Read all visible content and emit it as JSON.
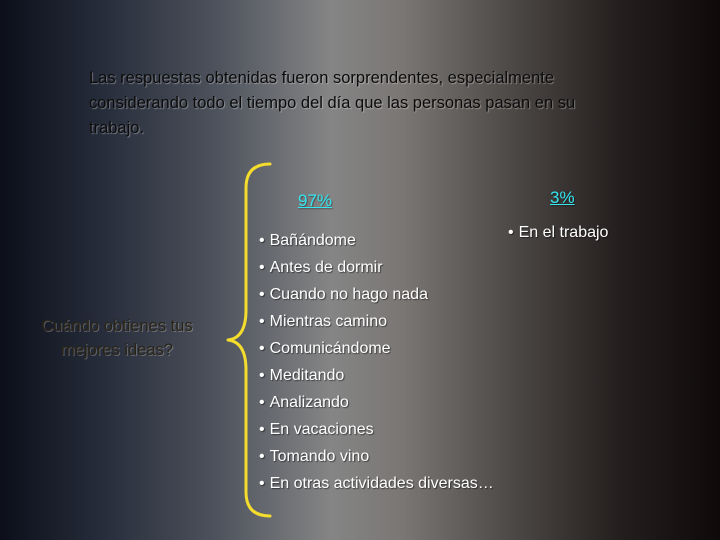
{
  "intro": {
    "text": "Las respuestas obtenidas fueron sorprendentes, especialmente considerando todo el tiempo del día que las personas pasan en su trabajo."
  },
  "question": {
    "text": "Cuándo obtienes tus mejores ideas?"
  },
  "percent_left": "97%",
  "percent_right": "3%",
  "work_item": "En el trabajo",
  "answers": [
    "Bañándome",
    "Antes de dormir",
    "Cuando no hago nada",
    "Mientras camino",
    "Comunicándome",
    "Meditando",
    "Analizando",
    "En vacaciones",
    "Tomando vino",
    "En otras actividades diversas…"
  ],
  "colors": {
    "accent_cyan": "#33e6ef",
    "brace_yellow": "#f4dd2c",
    "answer_text": "#ffffff"
  },
  "icons": {
    "brace": "left-curly-brace-icon"
  }
}
